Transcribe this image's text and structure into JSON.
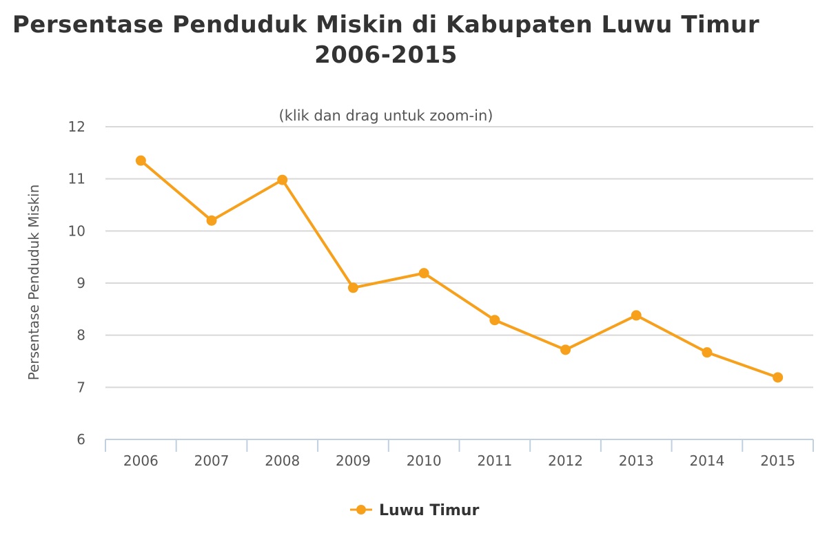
{
  "chart_data": {
    "type": "line",
    "title": "Persentase Penduduk Miskin di Kabupaten Luwu Timur 2006-2015",
    "title_lines": [
      "Persentase Penduduk Miskin di Kabupaten Luwu Timur",
      "2006-2015"
    ],
    "subtitle": "(klik dan drag untuk zoom-in)",
    "xlabel": "",
    "ylabel": "Persentase Penduduk Miskin",
    "categories": [
      "2006",
      "2007",
      "2008",
      "2009",
      "2010",
      "2011",
      "2012",
      "2013",
      "2014",
      "2015"
    ],
    "series": [
      {
        "name": "Luwu Timur",
        "color": "#f7a01c",
        "values": [
          11.35,
          10.2,
          10.98,
          8.91,
          9.19,
          8.29,
          7.72,
          8.38,
          7.67,
          7.19
        ]
      }
    ],
    "ylim": [
      6,
      12
    ],
    "yticks": [
      "6",
      "7",
      "8",
      "9",
      "10",
      "11",
      "12"
    ],
    "grid": true,
    "legend": "bottom-center"
  }
}
